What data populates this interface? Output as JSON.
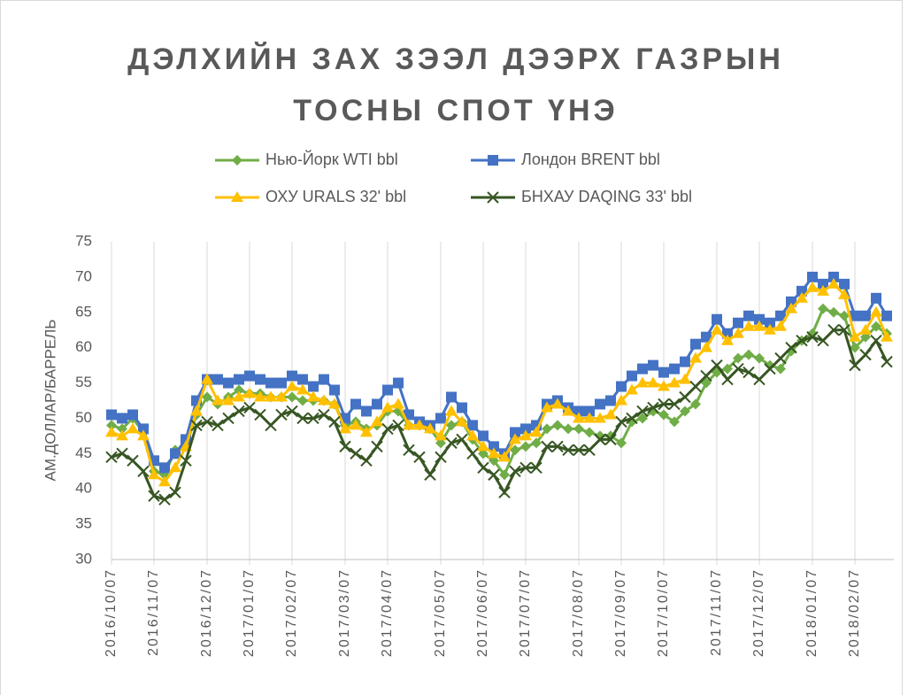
{
  "chart_data": {
    "type": "line",
    "title": "ДЭЛХИЙН ЗАХ ЗЭЭЛ ДЭЭРХ ГАЗРЫН ТОСНЫ СПОТ ҮНЭ",
    "y_label": "АМ.ДОЛЛАР/БАРРЕЛЬ",
    "ylim": [
      30,
      75
    ],
    "yticks": [
      30,
      35,
      40,
      45,
      50,
      55,
      60,
      65,
      70,
      75
    ],
    "grid": "x",
    "categories": [
      "2016/10/07",
      null,
      null,
      null,
      "2016/11/07",
      null,
      null,
      null,
      null,
      "2016/12/07",
      null,
      null,
      null,
      "2017/01/07",
      null,
      null,
      null,
      "2017/02/07",
      null,
      null,
      null,
      null,
      "2017/03/07",
      null,
      null,
      null,
      "2017/04/07",
      null,
      null,
      null,
      null,
      "2017/05/07",
      null,
      null,
      null,
      "2017/06/07",
      null,
      null,
      null,
      "2017/07/07",
      null,
      null,
      null,
      null,
      "2017/08/07",
      null,
      null,
      null,
      "2017/09/07",
      null,
      null,
      null,
      "2017/10/07",
      null,
      null,
      null,
      null,
      "2017/11/07",
      null,
      null,
      null,
      "2017/12/07",
      null,
      null,
      null,
      null,
      "2018/01/07",
      null,
      null,
      null,
      "2018/02/07",
      null,
      null,
      null
    ],
    "series": [
      {
        "name": "Нью-Йорк WTI bbl",
        "color": "#70ad47",
        "marker": "diamond",
        "values": [
          49,
          48.5,
          50,
          48,
          42.5,
          42,
          45.5,
          46,
          50.5,
          53,
          52,
          53,
          54,
          53.5,
          53.5,
          53,
          53,
          53,
          52.5,
          52.5,
          52.5,
          52,
          49,
          49.5,
          48.5,
          49,
          51,
          51,
          49,
          49,
          48.5,
          46.5,
          49,
          49.5,
          47,
          45,
          44,
          42,
          45.5,
          46,
          46.5,
          48.5,
          49,
          48.5,
          48.5,
          48,
          47.5,
          47.5,
          46.5,
          49.5,
          50,
          51,
          50.5,
          49.5,
          51,
          52,
          55,
          56.5,
          57,
          58.5,
          59,
          58.5,
          57.5,
          57,
          59.5,
          61,
          62,
          65.5,
          65,
          64.5,
          60,
          61.5,
          63,
          62
        ]
      },
      {
        "name": "Лондон BRENT bbl",
        "color": "#4472c4",
        "marker": "square",
        "values": [
          50.5,
          50,
          50.5,
          48.5,
          44,
          43,
          45,
          47,
          52.5,
          55.5,
          55.5,
          55,
          55.5,
          56,
          55.5,
          55,
          55,
          56,
          55.5,
          54.5,
          55.5,
          54,
          50,
          52,
          51,
          52,
          54,
          55,
          50.5,
          49.5,
          49,
          50,
          53,
          51.5,
          49,
          47.5,
          46,
          45,
          48,
          48.5,
          49,
          52,
          52.5,
          51.5,
          51,
          51,
          52,
          52.5,
          54.5,
          56,
          57,
          57.5,
          56.5,
          57,
          58,
          60.5,
          61.5,
          64,
          62,
          63.5,
          64.5,
          64,
          63.5,
          64.5,
          66.5,
          68,
          70,
          69,
          70,
          69,
          64.5,
          64.5,
          67,
          64.5
        ]
      },
      {
        "name": "ОХУ URALS 32' bbl",
        "color": "#ffc000",
        "marker": "triangle",
        "values": [
          48,
          47.5,
          48.5,
          47.5,
          42,
          41,
          43,
          46,
          51,
          55.5,
          52.5,
          52.5,
          53,
          53.5,
          53,
          53,
          53,
          54.5,
          54,
          53,
          52.5,
          52,
          48.5,
          49,
          48,
          49.5,
          51.5,
          52,
          49,
          49,
          48.5,
          47.5,
          51,
          49.5,
          47.5,
          46,
          45,
          44.5,
          47,
          47.5,
          48,
          51.5,
          52,
          51,
          50,
          50,
          50,
          50.5,
          52.5,
          54,
          55,
          55,
          54.5,
          55,
          55.5,
          58.5,
          60,
          62.5,
          61,
          62,
          63,
          63,
          62.5,
          63,
          65.5,
          67,
          68.5,
          68,
          69,
          67.5,
          61.5,
          62.5,
          65,
          61.5
        ]
      },
      {
        "name": "БНХАУ DAQING 33' bbl",
        "color": "#375623",
        "marker": "x",
        "values": [
          44.5,
          45,
          44,
          42.5,
          39,
          38.5,
          39.5,
          44,
          49,
          49.5,
          49,
          50,
          51,
          51.5,
          50.5,
          49,
          50.5,
          51,
          50,
          50,
          50.5,
          49.5,
          46,
          45,
          44,
          46,
          48.5,
          49,
          45.5,
          44.5,
          42,
          44.5,
          46.5,
          47,
          45,
          43,
          42,
          39.5,
          42.5,
          43,
          43,
          46,
          46,
          45.5,
          45.5,
          45.5,
          47,
          47,
          49.5,
          50,
          51,
          51.5,
          52,
          52,
          53,
          54.5,
          56,
          57.5,
          55.5,
          57,
          56.5,
          55.5,
          57,
          58.5,
          60,
          61,
          61.5,
          61,
          62.5,
          62.5,
          57.5,
          59,
          61,
          58
        ]
      }
    ]
  }
}
